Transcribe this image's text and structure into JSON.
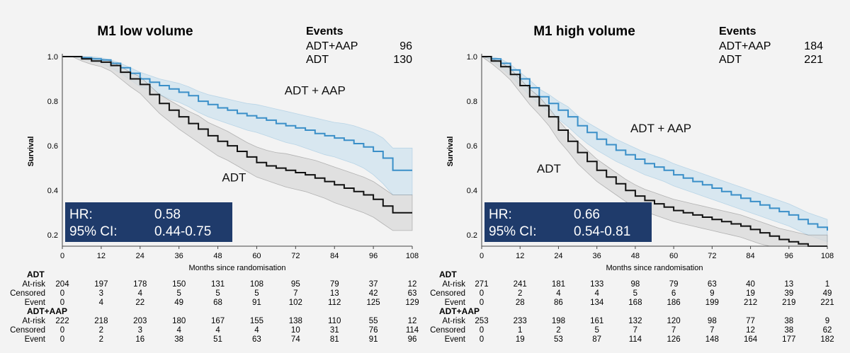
{
  "chart_data": [
    {
      "type": "line",
      "title": "M1 low volume",
      "xlabel": "Months since randomisation",
      "ylabel": "Survival",
      "xlim": [
        0,
        108
      ],
      "ylim": [
        0.15,
        1.0
      ],
      "x_ticks": [
        "0",
        "12",
        "24",
        "36",
        "48",
        "60",
        "72",
        "84",
        "96",
        "108"
      ],
      "y_ticks": [
        "1.0",
        "0.8",
        "0.6",
        "0.4",
        "0.2"
      ],
      "events": {
        "header": "Events",
        "rows": [
          {
            "label": "ADT+AAP",
            "value": "96"
          },
          {
            "label": "ADT",
            "value": "130"
          }
        ]
      },
      "hr_box": {
        "hr_label": "HR:",
        "hr_value": "0.58",
        "ci_label": "95% CI:",
        "ci_value": "0.44-0.75",
        "color": "#1f3b6b"
      },
      "series": [
        {
          "name": "ADT + AAP",
          "color": "#3a8fc8",
          "band_color": "#cfe3ef",
          "x": [
            0,
            3,
            6,
            9,
            12,
            15,
            18,
            21,
            24,
            27,
            30,
            33,
            36,
            39,
            42,
            45,
            48,
            51,
            54,
            57,
            60,
            63,
            66,
            69,
            72,
            75,
            78,
            81,
            84,
            87,
            90,
            93,
            96,
            99,
            102,
            105,
            108
          ],
          "y": [
            1.0,
            1.0,
            0.995,
            0.99,
            0.985,
            0.97,
            0.95,
            0.925,
            0.9,
            0.885,
            0.87,
            0.855,
            0.84,
            0.825,
            0.8,
            0.785,
            0.77,
            0.76,
            0.745,
            0.735,
            0.725,
            0.715,
            0.7,
            0.69,
            0.68,
            0.67,
            0.655,
            0.645,
            0.635,
            0.625,
            0.61,
            0.595,
            0.575,
            0.545,
            0.49,
            0.49,
            0.49
          ],
          "lower": [
            1.0,
            1.0,
            0.99,
            0.98,
            0.97,
            0.95,
            0.925,
            0.895,
            0.865,
            0.85,
            0.83,
            0.81,
            0.795,
            0.775,
            0.75,
            0.73,
            0.715,
            0.7,
            0.685,
            0.67,
            0.66,
            0.645,
            0.63,
            0.615,
            0.605,
            0.59,
            0.575,
            0.56,
            0.55,
            0.535,
            0.52,
            0.5,
            0.47,
            0.43,
            0.38,
            0.38,
            0.38
          ],
          "upper": [
            1.0,
            1.0,
            1.0,
            1.0,
            0.995,
            0.985,
            0.97,
            0.95,
            0.93,
            0.915,
            0.9,
            0.89,
            0.88,
            0.865,
            0.845,
            0.83,
            0.82,
            0.81,
            0.8,
            0.79,
            0.785,
            0.775,
            0.765,
            0.755,
            0.745,
            0.735,
            0.725,
            0.715,
            0.705,
            0.7,
            0.69,
            0.675,
            0.66,
            0.635,
            0.59,
            0.59,
            0.59
          ],
          "label_x": 78,
          "label_y": 0.83
        },
        {
          "name": "ADT",
          "color": "#111111",
          "band_color": "#d9d9d9",
          "x": [
            0,
            3,
            6,
            9,
            12,
            15,
            18,
            21,
            24,
            27,
            30,
            33,
            36,
            39,
            42,
            45,
            48,
            51,
            54,
            57,
            60,
            63,
            66,
            69,
            72,
            75,
            78,
            81,
            84,
            87,
            90,
            93,
            96,
            99,
            102,
            105,
            108
          ],
          "y": [
            1.0,
            1.0,
            0.99,
            0.98,
            0.975,
            0.96,
            0.93,
            0.9,
            0.875,
            0.83,
            0.79,
            0.76,
            0.73,
            0.7,
            0.675,
            0.645,
            0.62,
            0.6,
            0.575,
            0.55,
            0.525,
            0.51,
            0.5,
            0.49,
            0.48,
            0.47,
            0.455,
            0.44,
            0.425,
            0.41,
            0.395,
            0.38,
            0.36,
            0.33,
            0.3,
            0.3,
            0.3
          ],
          "lower": [
            1.0,
            1.0,
            0.98,
            0.965,
            0.955,
            0.935,
            0.9,
            0.865,
            0.835,
            0.79,
            0.745,
            0.71,
            0.675,
            0.645,
            0.615,
            0.585,
            0.555,
            0.535,
            0.51,
            0.485,
            0.46,
            0.445,
            0.43,
            0.415,
            0.405,
            0.395,
            0.38,
            0.365,
            0.345,
            0.33,
            0.315,
            0.3,
            0.28,
            0.25,
            0.22,
            0.22,
            0.22
          ],
          "upper": [
            1.0,
            1.0,
            1.0,
            0.995,
            0.99,
            0.98,
            0.955,
            0.93,
            0.91,
            0.87,
            0.83,
            0.805,
            0.78,
            0.755,
            0.735,
            0.705,
            0.685,
            0.665,
            0.64,
            0.615,
            0.595,
            0.58,
            0.57,
            0.565,
            0.555,
            0.545,
            0.535,
            0.52,
            0.505,
            0.49,
            0.475,
            0.46,
            0.44,
            0.41,
            0.38,
            0.38,
            0.38
          ],
          "label_x": 53,
          "label_y": 0.44
        }
      ],
      "risk_table": {
        "groups": [
          {
            "name": "ADT",
            "rows": [
              {
                "label": "At-risk",
                "values": [
                  "204",
                  "197",
                  "178",
                  "150",
                  "131",
                  "108",
                  "95",
                  "79",
                  "37",
                  "12"
                ]
              },
              {
                "label": "Censored",
                "values": [
                  "0",
                  "3",
                  "4",
                  "5",
                  "5",
                  "5",
                  "7",
                  "13",
                  "42",
                  "63"
                ]
              },
              {
                "label": "Event",
                "values": [
                  "0",
                  "4",
                  "22",
                  "49",
                  "68",
                  "91",
                  "102",
                  "112",
                  "125",
                  "129"
                ]
              }
            ]
          },
          {
            "name": "ADT+AAP",
            "rows": [
              {
                "label": "At-risk",
                "values": [
                  "222",
                  "218",
                  "203",
                  "180",
                  "167",
                  "155",
                  "138",
                  "110",
                  "55",
                  "12"
                ]
              },
              {
                "label": "Censored",
                "values": [
                  "0",
                  "2",
                  "3",
                  "4",
                  "4",
                  "4",
                  "10",
                  "31",
                  "76",
                  "114"
                ]
              },
              {
                "label": "Event",
                "values": [
                  "0",
                  "2",
                  "16",
                  "38",
                  "51",
                  "63",
                  "74",
                  "81",
                  "91",
                  "96"
                ]
              }
            ]
          }
        ]
      }
    },
    {
      "type": "line",
      "title": "M1 high volume",
      "xlabel": "Months since randomisation",
      "ylabel": "Survival",
      "xlim": [
        0,
        108
      ],
      "ylim": [
        0.15,
        1.0
      ],
      "x_ticks": [
        "0",
        "12",
        "24",
        "36",
        "48",
        "60",
        "72",
        "84",
        "96",
        "108"
      ],
      "y_ticks": [
        "1.0",
        "0.8",
        "0.6",
        "0.4",
        "0.2"
      ],
      "events": {
        "header": "Events",
        "rows": [
          {
            "label": "ADT+AAP",
            "value": "184"
          },
          {
            "label": "ADT",
            "value": "221"
          }
        ]
      },
      "hr_box": {
        "hr_label": "HR:",
        "hr_value": "0.66",
        "ci_label": "95% CI:",
        "ci_value": "0.54-0.81",
        "color": "#1f3b6b"
      },
      "series": [
        {
          "name": "ADT + AAP",
          "color": "#3a8fc8",
          "band_color": "#cfe3ef",
          "x": [
            0,
            3,
            6,
            9,
            12,
            15,
            18,
            21,
            24,
            27,
            30,
            33,
            36,
            39,
            42,
            45,
            48,
            51,
            54,
            57,
            60,
            63,
            66,
            69,
            72,
            75,
            78,
            81,
            84,
            87,
            90,
            93,
            96,
            99,
            102,
            105,
            108
          ],
          "y": [
            1.0,
            0.99,
            0.97,
            0.94,
            0.9,
            0.86,
            0.82,
            0.79,
            0.76,
            0.73,
            0.69,
            0.66,
            0.63,
            0.605,
            0.58,
            0.56,
            0.54,
            0.52,
            0.505,
            0.49,
            0.47,
            0.455,
            0.44,
            0.425,
            0.41,
            0.395,
            0.38,
            0.365,
            0.35,
            0.335,
            0.32,
            0.305,
            0.29,
            0.27,
            0.25,
            0.235,
            0.22
          ],
          "lower": [
            1.0,
            0.98,
            0.95,
            0.915,
            0.87,
            0.825,
            0.785,
            0.75,
            0.72,
            0.685,
            0.645,
            0.61,
            0.58,
            0.555,
            0.53,
            0.51,
            0.49,
            0.47,
            0.455,
            0.44,
            0.42,
            0.405,
            0.39,
            0.375,
            0.36,
            0.345,
            0.33,
            0.315,
            0.3,
            0.285,
            0.27,
            0.255,
            0.24,
            0.22,
            0.2,
            0.185,
            0.17
          ],
          "upper": [
            1.0,
            1.0,
            0.99,
            0.965,
            0.93,
            0.895,
            0.855,
            0.83,
            0.8,
            0.775,
            0.735,
            0.705,
            0.68,
            0.655,
            0.63,
            0.61,
            0.59,
            0.57,
            0.555,
            0.54,
            0.52,
            0.505,
            0.49,
            0.475,
            0.46,
            0.445,
            0.43,
            0.415,
            0.4,
            0.385,
            0.37,
            0.355,
            0.34,
            0.32,
            0.3,
            0.285,
            0.27
          ],
          "label_x": 56,
          "label_y": 0.66
        },
        {
          "name": "ADT",
          "color": "#111111",
          "band_color": "#d9d9d9",
          "x": [
            0,
            3,
            6,
            9,
            12,
            15,
            18,
            21,
            24,
            27,
            30,
            33,
            36,
            39,
            42,
            45,
            48,
            51,
            54,
            57,
            60,
            63,
            66,
            69,
            72,
            75,
            78,
            81,
            84,
            87,
            90,
            93,
            96,
            99,
            102,
            105,
            108
          ],
          "y": [
            1.0,
            0.98,
            0.955,
            0.92,
            0.87,
            0.82,
            0.78,
            0.73,
            0.67,
            0.62,
            0.57,
            0.53,
            0.49,
            0.46,
            0.43,
            0.4,
            0.375,
            0.355,
            0.34,
            0.325,
            0.31,
            0.3,
            0.29,
            0.28,
            0.27,
            0.26,
            0.25,
            0.24,
            0.225,
            0.21,
            0.195,
            0.18,
            0.17,
            0.16,
            0.15,
            0.15,
            0.15
          ],
          "lower": [
            1.0,
            0.97,
            0.935,
            0.895,
            0.84,
            0.785,
            0.74,
            0.69,
            0.625,
            0.575,
            0.52,
            0.48,
            0.44,
            0.41,
            0.38,
            0.35,
            0.325,
            0.305,
            0.29,
            0.275,
            0.26,
            0.25,
            0.24,
            0.23,
            0.22,
            0.21,
            0.2,
            0.19,
            0.175,
            0.16,
            0.15,
            0.15,
            0.15,
            0.15,
            0.15,
            0.15,
            0.15
          ],
          "upper": [
            1.0,
            0.99,
            0.975,
            0.945,
            0.9,
            0.855,
            0.82,
            0.77,
            0.715,
            0.665,
            0.62,
            0.58,
            0.54,
            0.51,
            0.48,
            0.45,
            0.425,
            0.405,
            0.39,
            0.375,
            0.36,
            0.35,
            0.34,
            0.33,
            0.32,
            0.31,
            0.3,
            0.29,
            0.275,
            0.26,
            0.245,
            0.23,
            0.22,
            0.21,
            0.2,
            0.2,
            0.2
          ],
          "label_x": 21,
          "label_y": 0.48
        }
      ],
      "risk_table": {
        "groups": [
          {
            "name": "ADT",
            "rows": [
              {
                "label": "At-risk",
                "values": [
                  "271",
                  "241",
                  "181",
                  "133",
                  "98",
                  "79",
                  "63",
                  "40",
                  "13",
                  "1"
                ]
              },
              {
                "label": "Censored",
                "values": [
                  "0",
                  "2",
                  "4",
                  "4",
                  "5",
                  "6",
                  "9",
                  "19",
                  "39",
                  "49"
                ]
              },
              {
                "label": "Event",
                "values": [
                  "0",
                  "28",
                  "86",
                  "134",
                  "168",
                  "186",
                  "199",
                  "212",
                  "219",
                  "221"
                ]
              }
            ]
          },
          {
            "name": "ADT+AAP",
            "rows": [
              {
                "label": "At-risk",
                "values": [
                  "253",
                  "233",
                  "198",
                  "161",
                  "132",
                  "120",
                  "98",
                  "77",
                  "38",
                  "9"
                ]
              },
              {
                "label": "Censored",
                "values": [
                  "0",
                  "1",
                  "2",
                  "5",
                  "7",
                  "7",
                  "7",
                  "12",
                  "38",
                  "62"
                ]
              },
              {
                "label": "Event",
                "values": [
                  "0",
                  "19",
                  "53",
                  "87",
                  "114",
                  "126",
                  "148",
                  "164",
                  "177",
                  "182"
                ]
              }
            ]
          }
        ]
      }
    }
  ]
}
